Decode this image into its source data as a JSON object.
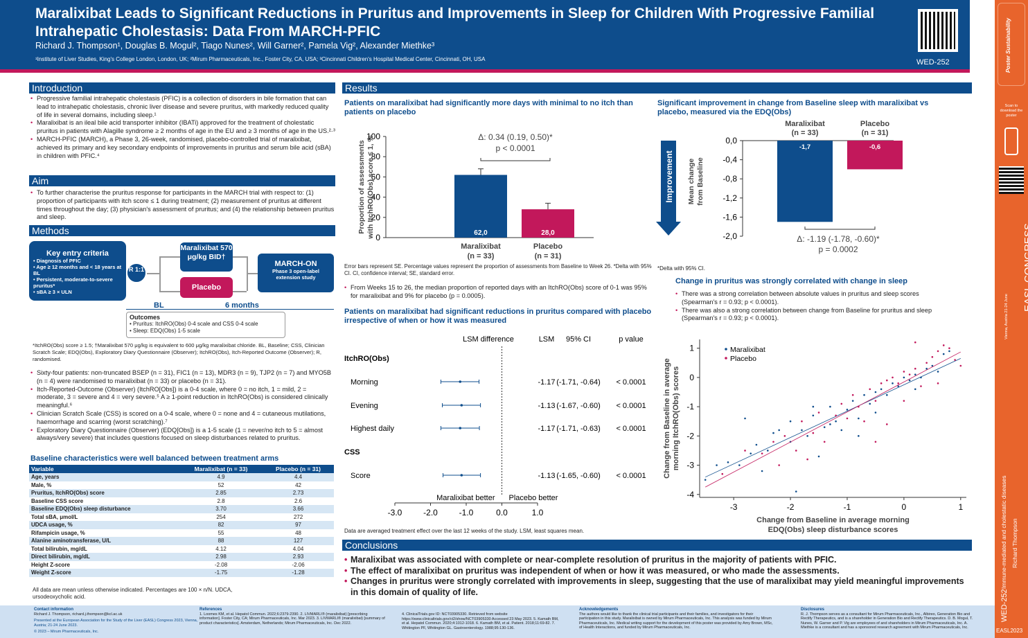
{
  "header": {
    "title": "Maralixibat Leads to Significant Reductions in Pruritus and Improvements in Sleep for Children With Progressive Familial Intrahepatic Cholestasis: Data From MARCH-PFIC",
    "authors": "Richard J. Thompson¹, Douglas B. Mogul², Tiago Nunes², Will Garner², Pamela Vig², Alexander Miethke³",
    "affiliations": "¹Institute of Liver Studies, King's College London, London, UK; ²Mirum Pharmaceuticals, Inc., Foster City, CA, USA; ³Cincinnati Children's Hospital Medical Center, Cincinnati, OH, USA",
    "poster_id": "WED-252"
  },
  "intro": {
    "heading": "Introduction",
    "bullets": [
      "Progressive familial intrahepatic cholestasis (PFIC) is a collection of disorders in bile formation that can lead to intrahepatic cholestasis, chronic liver disease and severe pruritus, with markedly reduced quality of life in several domains, including sleep.¹",
      "Maralixibat is an ileal bile acid transporter inhibitor (IBATi) approved for the treatment of cholestatic pruritus in patients with Alagille syndrome ≥ 2 months of age in the EU and ≥ 3 months of age in the US.²·³",
      "MARCH-PFIC (MARCH), a Phase 3, 26-week, randomised, placebo-controlled trial of maralixibat, achieved its primary and key secondary endpoints of improvements in pruritus and serum bile acid (sBA) in children with PFIC.⁴"
    ]
  },
  "aim": {
    "heading": "Aim",
    "bullets": [
      "To further characterise the pruritus response for participants in the MARCH trial with respect to: (1) proportion of participants with itch score ≤ 1 during treatment; (2) measurement of pruritus at different times throughout the day; (3) physician's assessment of pruritus; and (4) the relationship between pruritus and sleep."
    ]
  },
  "methods": {
    "heading": "Methods",
    "entry_title": "Key entry criteria",
    "entry_items": [
      "Diagnosis of PFIC",
      "Age ≥ 12 months and < 18 years at BL",
      "Persistent, moderate-to-severe pruritus*",
      "sBA ≥ 3 × ULN"
    ],
    "randomisation": "R 1:1",
    "arm1": "Maralixibat 570 μg/kg BID†",
    "arm2": "Placebo",
    "ext_title": "MARCH-ON",
    "ext_sub": "Phase 3 open-label extension study",
    "bl": "BL",
    "months": "6 months",
    "outcomes_title": "Outcomes",
    "outcomes": [
      "Pruritus: ItchRO(Obs) 0-4 scale and CSS 0-4 scale",
      "Sleep: EDQ(Obs) 1-5 scale"
    ],
    "footnote": "*ItchRO(Obs) score ≥ 1.5; †Maralixibat 570 μg/kg is equivalent to 600 μg/kg maralixibat chloride. BL, Baseline; CSS, Clinician Scratch Scale; EDQ(Obs), Exploratory Diary Questionnaire (Observer); ItchRO(Obs), Itch-Reported Outcome (Observer); R, randomised.",
    "bullets": [
      "Sixty-four patients: non-truncated BSEP (n = 31), FIC1 (n = 13), MDR3 (n = 9), TJP2 (n = 7) and MYO5B (n = 4) were randomised to maralixibat (n = 33) or placebo (n = 31).",
      "Itch-Reported-Outcome (Observer) (ItchRO[Obs]) is a 0-4 scale, where 0 = no itch, 1 = mild, 2 = moderate, 3 = severe and 4 = very severe.⁵ A ≥ 1-point reduction in ItchRO(Obs) is considered clinically meaningful.⁶",
      "Clinician Scratch Scale (CSS) is scored on a 0-4 scale, where 0 = none and 4 = cutaneous mutilations, haemorrhage and scarring (worst scratching).⁷",
      "Exploratory Diary Questionnaire (Observer) (EDQ[Obs]) is a 1-5 scale (1 = never/no itch to 5 = almost always/very severe) that includes questions focused on sleep disturbances related to pruritus."
    ]
  },
  "baseline": {
    "heading": "Baseline characteristics were well balanced between treatment arms",
    "columns": [
      "Variable",
      "Maralixibat (n = 33)",
      "Placebo (n = 31)"
    ],
    "rows": [
      [
        "Age, years",
        "4.9",
        "4.4"
      ],
      [
        "Male, %",
        "52",
        "42"
      ],
      [
        "Pruritus, ItchRO(Obs) score",
        "2.85",
        "2.73"
      ],
      [
        "Baseline CSS score",
        "2.8",
        "2.6"
      ],
      [
        "Baseline EDQ(Obs) sleep disturbance",
        "3.70",
        "3.66"
      ],
      [
        "Total sBA, μmol/L",
        "254",
        "272"
      ],
      [
        "UDCA usage, %",
        "82",
        "97"
      ],
      [
        "Rifampicin usage, %",
        "55",
        "48"
      ],
      [
        "Alanine aminotransferase, U/L",
        "88",
        "127"
      ],
      [
        "Total bilirubin, mg/dL",
        "4.12",
        "4.04"
      ],
      [
        "Direct bilirubin, mg/dL",
        "2.98",
        "2.93"
      ],
      [
        "Height Z-score",
        "-2.08",
        "-2.06"
      ],
      [
        "Weight Z-score",
        "-1.75",
        "-1.28"
      ]
    ],
    "note": "All data are mean unless otherwise indicated. Percentages are 100 × n/N. UDCA, ursodeoxycholic acid."
  },
  "results": {
    "heading": "Results",
    "fig1_title": "Patients on maralixibat had significantly more days with minimal to no itch than patients on placebo",
    "fig1_note": "Error bars represent SE. Percentage values represent the proportion of assessments from Baseline to Week 26. *Delta with 95% CI. CI, confidence interval; SE, standard error.",
    "fig1_bullet": "From Weeks 15 to 26, the median proportion of reported days with an ItchRO(Obs) score of 0-1 was 95% for maralixibat and 9% for placebo (p = 0.0005).",
    "fig2_title": "Patients on maralixibat had significant reductions in pruritus compared with placebo irrespective of when or how it was measured",
    "fig2_note": "Data are averaged treatment effect over the last 12 weeks of the study. LSM, least squares mean.",
    "fig3_title": "Significant improvement in change from Baseline sleep with maralixibat vs placebo, measured via the EDQ(Obs)",
    "fig3_note": "*Delta with 95% CI.",
    "fig4_title": "Change in pruritus was strongly correlated with change in sleep",
    "fig4_bullets": [
      "There was a strong correlation between absolute values in pruritus and sleep scores (Spearman's r = 0.93; p < 0.0001).",
      "There was also a strong correlation between change from Baseline for pruritus and sleep (Spearman's r = 0.93; p < 0.0001)."
    ]
  },
  "chart_data": [
    {
      "type": "bar",
      "categories": [
        "Maralixibat (n = 33)",
        "Placebo (n = 31)"
      ],
      "values": [
        62.0,
        28.0
      ],
      "labels": [
        "62,0",
        "28,0"
      ],
      "errors": [
        6,
        6
      ],
      "ylabel": "Proportion of assessments with ItchRO(Obs) score ≤ 1, %",
      "ylim": [
        0,
        100
      ],
      "yticks": [
        "0",
        "20",
        "40",
        "60",
        "80",
        "100"
      ],
      "annotation": "Δ: 0.34 (0.19, 0.50)*",
      "pvalue": "p < 0.0001",
      "colors": [
        "#0e4d8c",
        "#c2185b"
      ]
    },
    {
      "type": "forest",
      "columns": [
        "LSM difference",
        "LSM",
        "95% CI",
        "p value"
      ],
      "groups": [
        "ItchRO(Obs)",
        "CSS"
      ],
      "rows": [
        {
          "label": "Morning",
          "lsm": -1.17,
          "lo": -1.71,
          "hi": -0.64,
          "lsm_t": "-1.17",
          "ci_t": "(-1.71, -0.64)",
          "p": "< 0.0001"
        },
        {
          "label": "Evening",
          "lsm": -1.13,
          "lo": -1.67,
          "hi": -0.6,
          "lsm_t": "-1.13",
          "ci_t": "(-1.67, -0.60)",
          "p": "< 0.0001"
        },
        {
          "label": "Highest daily",
          "lsm": -1.17,
          "lo": -1.71,
          "hi": -0.63,
          "lsm_t": "-1.17",
          "ci_t": "(-1.71, -0.63)",
          "p": "< 0.0001"
        },
        {
          "label": "Score",
          "lsm": -1.13,
          "lo": -1.65,
          "hi": -0.6,
          "lsm_t": "-1.13",
          "ci_t": "(-1.65, -0.60)",
          "p": "< 0.0001"
        }
      ],
      "xlim": [
        -3,
        1
      ],
      "xticks": [
        "-3.0",
        "-2.0",
        "-1.0",
        "0.0",
        "1.0"
      ],
      "left_label": "Maralixibat better",
      "right_label": "Placebo better"
    },
    {
      "type": "bar",
      "categories": [
        "Maralixibat (n = 33)",
        "Placebo (n = 31)"
      ],
      "values": [
        -1.7,
        -0.6
      ],
      "labels": [
        "-1,7",
        "-0,6"
      ],
      "ylabel": "Mean change from Baseline",
      "arrow_label": "Improvement",
      "ylim": [
        -2,
        0
      ],
      "yticks": [
        "0,0",
        "-0,4",
        "-0,8",
        "-1,2",
        "-1,6",
        "-2,0"
      ],
      "annotation": "Δ: -1.19 (-1.78, -0.60)*",
      "pvalue": "p = 0.0002",
      "colors": [
        "#0e4d8c",
        "#c2185b"
      ]
    },
    {
      "type": "scatter",
      "xlabel": "Change from Baseline in average morning EDQ(Obs) sleep disturbance scores",
      "ylabel": "Change from Baseline in average morning ItchRO(Obs) scores",
      "xlim": [
        -3.6,
        1.1
      ],
      "ylim": [
        -4.1,
        1.3
      ],
      "xticks": [
        "-3",
        "-2",
        "-1",
        "0",
        "1"
      ],
      "yticks": [
        "1",
        "0",
        "-1",
        "-2",
        "-3",
        "-4"
      ],
      "series": [
        {
          "name": "Maralixibat",
          "color": "#0e4d8c",
          "points": [
            [
              -3.5,
              -3.5
            ],
            [
              -3.3,
              -3.0
            ],
            [
              -3.1,
              -2.9
            ],
            [
              -2.9,
              -3.0
            ],
            [
              -2.7,
              -2.6
            ],
            [
              -2.6,
              -2.3
            ],
            [
              -2.4,
              -2.5
            ],
            [
              -2.3,
              -1.9
            ],
            [
              -2.2,
              -1.8
            ],
            [
              -2.0,
              -2.2
            ],
            [
              -2.0,
              -1.5
            ],
            [
              -1.8,
              -1.8
            ],
            [
              -1.7,
              -2.0
            ],
            [
              -1.6,
              -1.3
            ],
            [
              -1.5,
              -2.7
            ],
            [
              -1.4,
              -1.7
            ],
            [
              -1.3,
              -1.0
            ],
            [
              -1.2,
              -1.5
            ],
            [
              -1.1,
              -1.8
            ],
            [
              -1.0,
              -1.1
            ],
            [
              -0.9,
              -0.8
            ],
            [
              -0.8,
              -1.4
            ],
            [
              -0.7,
              -0.6
            ],
            [
              -0.6,
              -0.9
            ],
            [
              -0.5,
              -0.5
            ],
            [
              -0.4,
              -0.4
            ],
            [
              -0.3,
              -0.6
            ],
            [
              -0.2,
              -0.2
            ],
            [
              -0.1,
              -0.3
            ],
            [
              0.0,
              0.0
            ],
            [
              0.1,
              -0.1
            ],
            [
              0.2,
              0.1
            ],
            [
              0.3,
              0.0
            ],
            [
              0.4,
              0.3
            ],
            [
              0.5,
              0.4
            ],
            [
              0.6,
              0.2
            ],
            [
              0.7,
              0.8
            ],
            [
              0.8,
              0.9
            ],
            [
              -1.9,
              -3.9
            ],
            [
              -1.3,
              -1.6
            ],
            [
              -0.8,
              -2.0
            ],
            [
              -2.8,
              -1.4
            ],
            [
              -0.5,
              -1.2
            ],
            [
              0.2,
              -0.4
            ],
            [
              -2.5,
              -3.2
            ],
            [
              -1.6,
              -1.0
            ]
          ]
        },
        {
          "name": "Placebo",
          "color": "#c2185b",
          "points": [
            [
              -3.2,
              -3.3
            ],
            [
              -2.8,
              -2.5
            ],
            [
              -2.5,
              -2.6
            ],
            [
              -2.3,
              -2.2
            ],
            [
              -2.1,
              -2.0
            ],
            [
              -1.9,
              -2.5
            ],
            [
              -1.8,
              -1.5
            ],
            [
              -1.6,
              -1.9
            ],
            [
              -1.5,
              -1.2
            ],
            [
              -1.4,
              -2.2
            ],
            [
              -1.2,
              -1.3
            ],
            [
              -1.1,
              -0.9
            ],
            [
              -1.0,
              -1.4
            ],
            [
              -0.9,
              -0.6
            ],
            [
              -0.8,
              -1.0
            ],
            [
              -0.7,
              -1.5
            ],
            [
              -0.6,
              -0.4
            ],
            [
              -0.5,
              -0.8
            ],
            [
              -0.4,
              -0.2
            ],
            [
              -0.3,
              -0.1
            ],
            [
              -0.2,
              0.0
            ],
            [
              -0.1,
              -0.2
            ],
            [
              0.0,
              0.2
            ],
            [
              0.1,
              0.1
            ],
            [
              0.2,
              0.3
            ],
            [
              0.3,
              -0.3
            ],
            [
              0.4,
              0.5
            ],
            [
              0.5,
              0.7
            ],
            [
              0.6,
              0.9
            ],
            [
              0.7,
              1.1
            ],
            [
              0.8,
              1.0
            ],
            [
              0.9,
              0.6
            ],
            [
              1.0,
              0.4
            ],
            [
              -0.5,
              -2.2
            ],
            [
              -1.7,
              -2.8
            ],
            [
              0.0,
              -0.8
            ],
            [
              -0.3,
              -1.6
            ],
            [
              0.2,
              1.2
            ],
            [
              -2.2,
              -3.0
            ],
            [
              0.6,
              -0.2
            ]
          ]
        }
      ]
    }
  ],
  "conclusions": {
    "heading": "Conclusions",
    "bullets": [
      "Maralixibat was associated with complete or near-complete resolution of pruritus in the majority of patients with PFIC.",
      "The effect of maralixibat on pruritus was independent of when or how it was measured, or who made the assessments.",
      "Changes in pruritus were strongly correlated with improvements in sleep, suggesting that the use of maralixibat may yield meaningful improvements in this domain of quality of life."
    ]
  },
  "footer": {
    "contact_h": "Contact information",
    "contact": "Richard J. Thompson, richard.j.thompson@kcl.ac.uk",
    "presented": "Presented at the European Association for the Study of the Liver (EASL) Congress 2023, Vienna, Austria; 21-24 June 2023.",
    "copyright": "© 2023 – Mirum Pharmaceuticals, Inc.",
    "refs_h": "References",
    "refs1": "1. Loomes KM, et al. Hepatol Commun. 2022;6:2379-2390. 2. LIVMARLI® (maralixibat) [prescribing information]. Foster City, CA; Mirum Pharmaceuticals, Inc. Mar 2023. 3. LIVMARLI® (maralixibat) [summary of product characteristics]. Amsterdam, Netherlands; Mirum Pharmaceuticals, Inc. Dec 2022.",
    "refs2": "4. ClinicalTrials.gov ID: NCT03905330. Retrieved from website https://www.clinicaltrials.gov/ct2/show/NCT03905330 Accessed 23 May 2023. 5. Kamath BM, et al. Hepatol Commun. 2020;4:1012-1018. 6. Kamath BM, et al. Patient. 2018;11:69-82. 7. Whitington PF, Whitington GL. Gastroenterology. 1988;95:130-136.",
    "ack_h": "Acknowledgements",
    "ack": "The authors would like to thank the clinical trial participants and their families, and investigators for their participation in this study. Maralixibat is owned by Mirum Pharmaceuticals, Inc. This analysis was funded by Mirum Pharmaceuticals, Inc. Medical writing support for the development of this poster was provided by Amy Brown, MSc, of Health Interactions, and funded by Mirum Pharmaceuticals, Inc.",
    "disc_h": "Disclosures",
    "disc": "R. J. Thompson serves as a consultant for Mirum Pharmaceuticals, Inc., Albireo, Generation Bio and Rectify Therapeutics, and is a shareholder in Generation Bio and Rectify Therapeutics. D. B. Mogul, T. Nunes, W. Garner and P. Vig are employees of and shareholders in Mirum Pharmaceuticals, Inc. A. Miethke is a consultant and has a sponsored research agreement with Mirum Pharmaceuticals, Inc."
  },
  "sidebar": {
    "scan": "Scan to download the poster",
    "congress": "EASL CONGRESS 2023",
    "dates": "Vienna, Austria 21-24 June",
    "topic": "Immune-mediated and cholestatic diseases",
    "presenter": "Richard Thompson",
    "id": "WED-252",
    "code": "EASL2023",
    "logo": "Poster Sustainability"
  }
}
